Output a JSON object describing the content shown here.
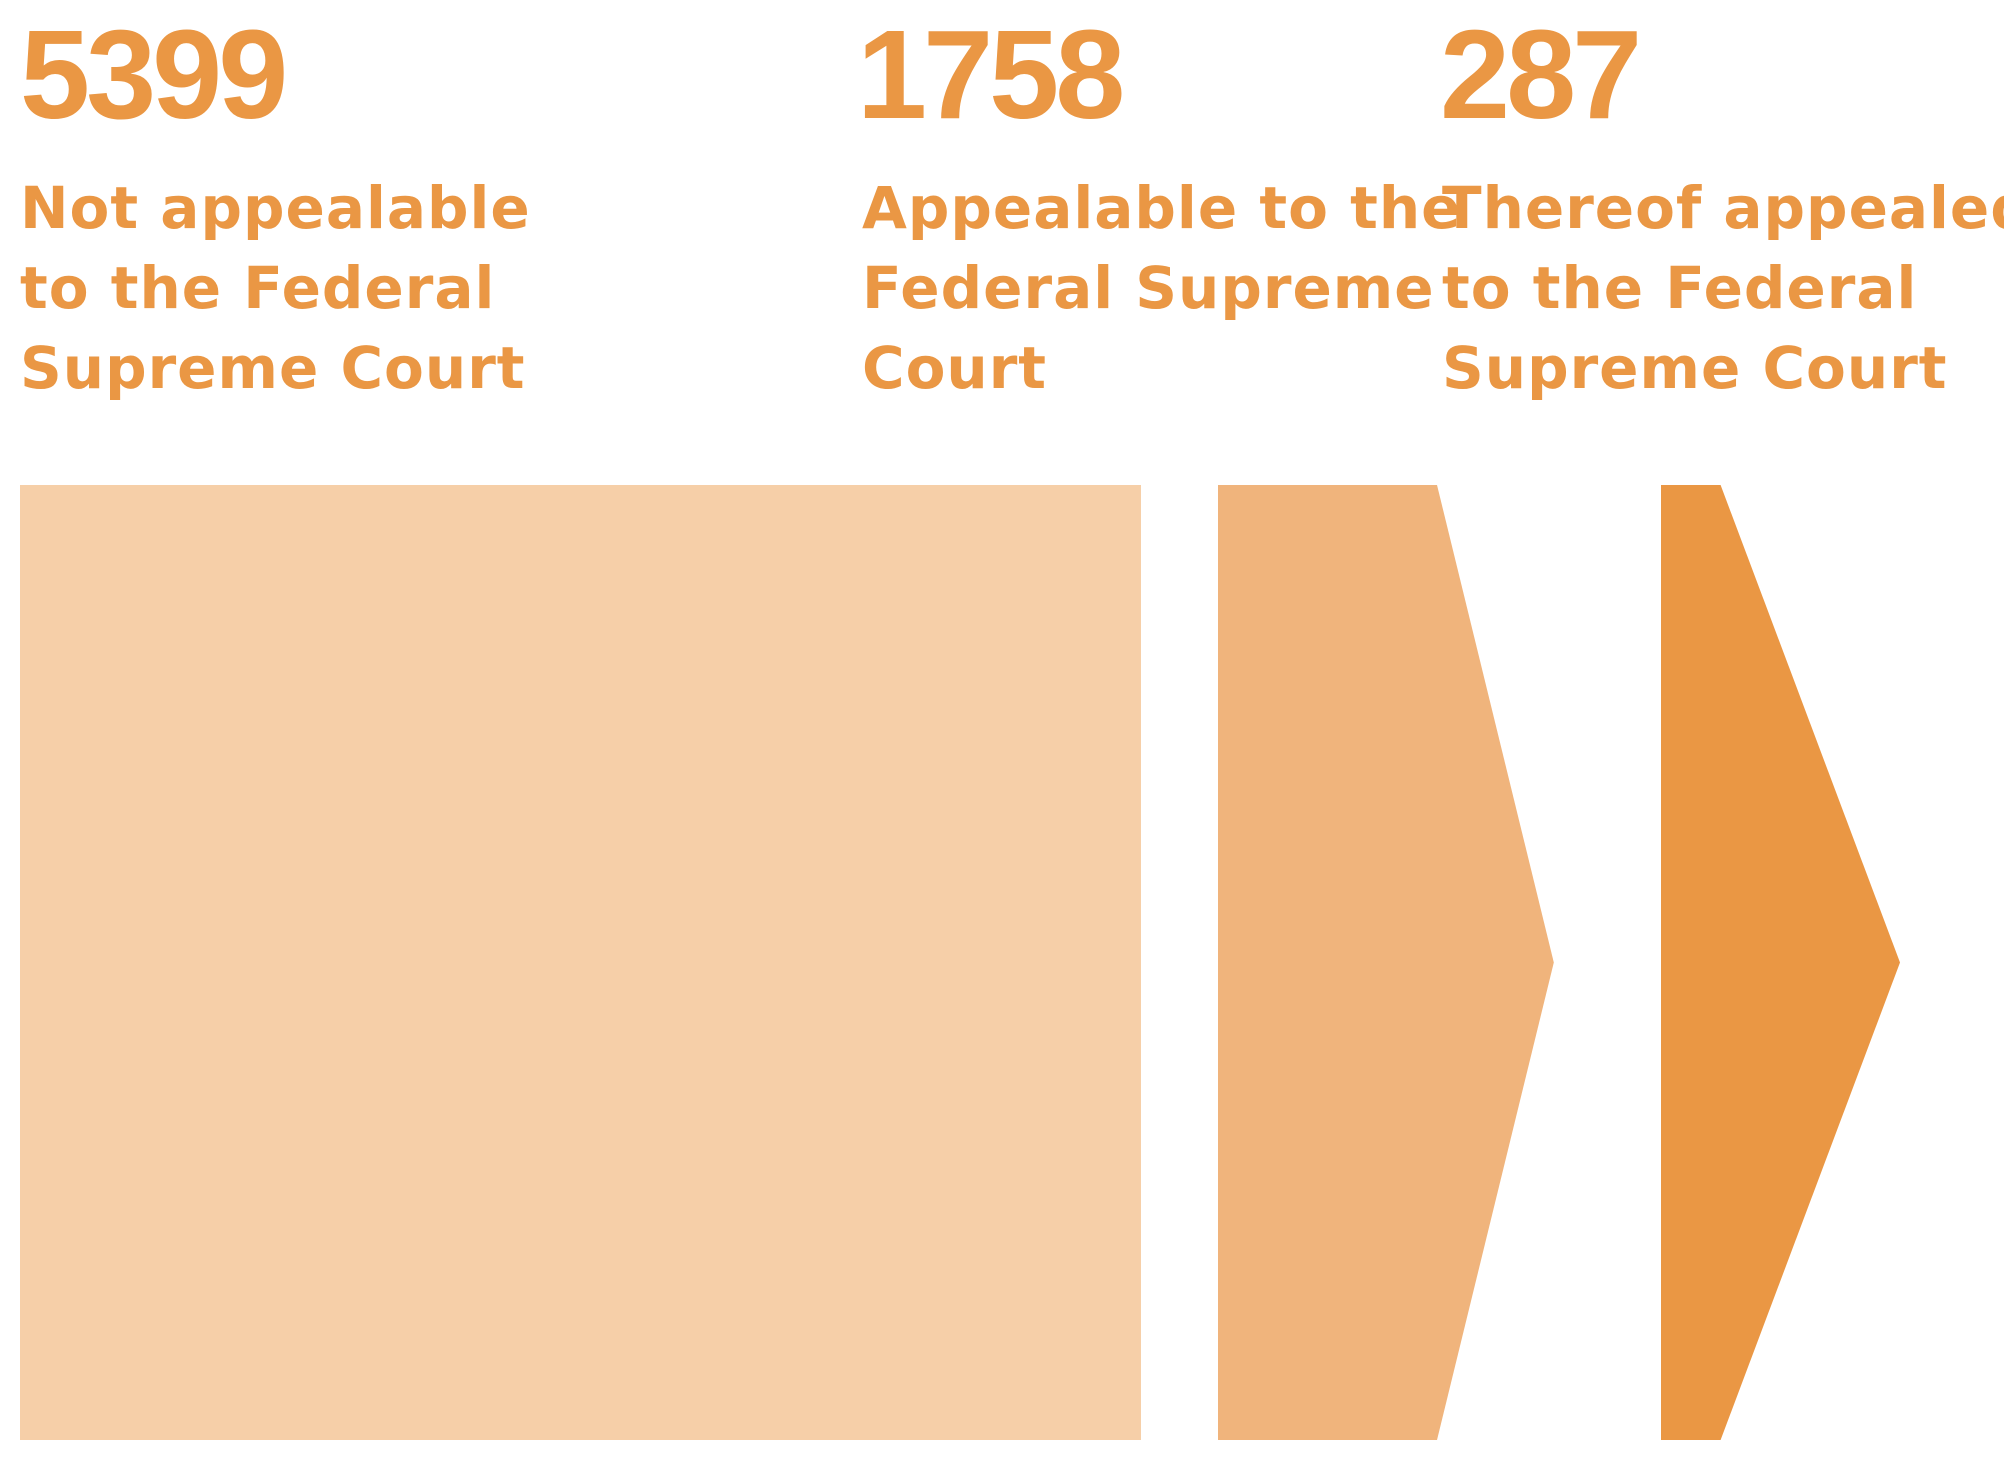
{
  "chart_data": {
    "type": "bar",
    "series": [
      {
        "value": 5399,
        "label_lines": [
          "Not appealable",
          "to the Federal",
          "Supreme Court"
        ],
        "color": "#F6CFA8"
      },
      {
        "value": 1758,
        "label_lines": [
          "Appealable to the",
          "Federal Supreme",
          "Court"
        ],
        "color": "#F0B47C"
      },
      {
        "value": 287,
        "label_lines": [
          "Thereof appealed",
          "to the Federal",
          "Supreme Court"
        ],
        "color": "#EA9744"
      }
    ],
    "text_color": "#EA9744"
  }
}
